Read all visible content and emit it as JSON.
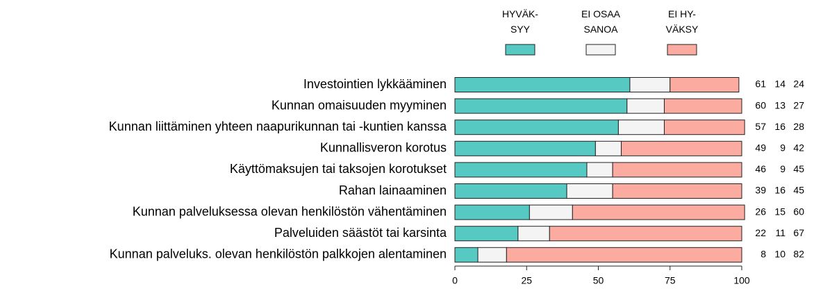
{
  "chart_data": {
    "type": "stacked_barh",
    "categories": [
      "Investointien lykkääminen",
      "Kunnan omaisuuden myyminen",
      "Kunnan liittäminen yhteen naapurikunnan tai -kuntien kanssa",
      "Kunnallisveron korotus",
      "Käyttömaksujen tai taksojen korotukset",
      "Rahan lainaaminen",
      "Kunnan palveluksessa olevan henkilöstön vähentäminen",
      "Palveluiden säästöt tai karsinta",
      "Kunnan palveluks. olevan henkilöstön palkkojen alentaminen"
    ],
    "series": [
      {
        "name": "HYVÄK-\nSYY",
        "color": "#56c9c3",
        "values": [
          61,
          60,
          57,
          49,
          46,
          39,
          26,
          22,
          8
        ]
      },
      {
        "name": "EI OSAA\nSANOA",
        "color": "#f4f4f4",
        "values": [
          14,
          13,
          16,
          9,
          9,
          16,
          15,
          11,
          10
        ]
      },
      {
        "name": "EI HY-\nVÄKSY",
        "color": "#fbab9f",
        "values": [
          24,
          27,
          28,
          42,
          45,
          45,
          60,
          67,
          82
        ]
      }
    ],
    "xlim": [
      0,
      100
    ],
    "xticks": [
      0,
      25,
      50,
      75,
      100
    ],
    "legend": "top"
  }
}
